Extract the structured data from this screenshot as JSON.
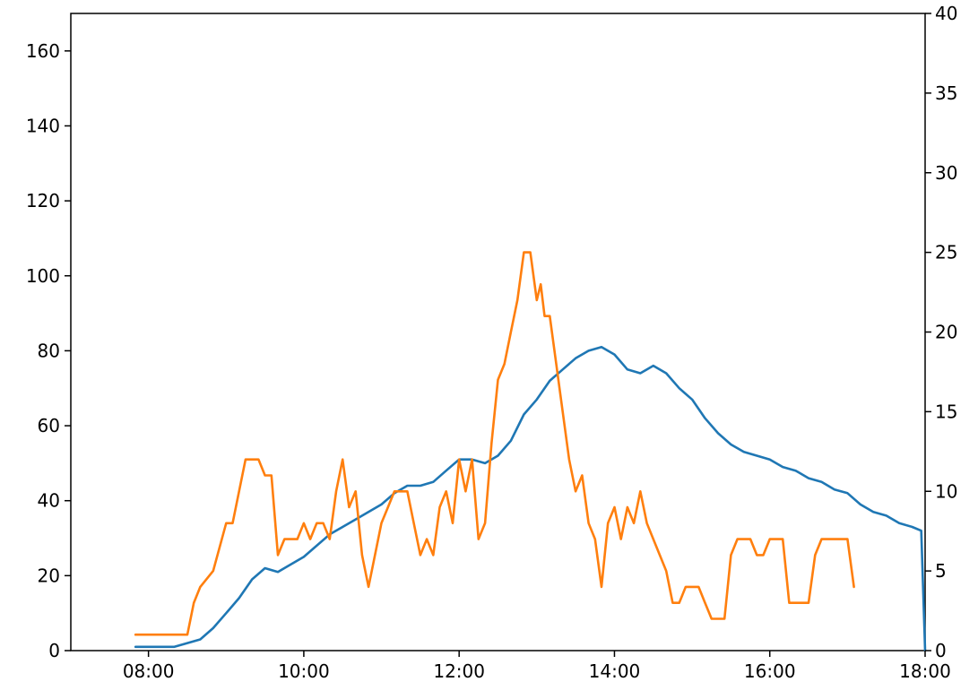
{
  "chart_data": {
    "type": "line",
    "title": "",
    "xlabel": "",
    "ylabel": "",
    "ylabel_right": "",
    "grid": false,
    "xlim": [
      "07:00",
      "18:00"
    ],
    "ylim_left": [
      0,
      170
    ],
    "ylim_right": [
      0,
      40
    ],
    "x_ticks": [
      "08:00",
      "10:00",
      "12:00",
      "14:00",
      "16:00",
      "18:00"
    ],
    "y_left_ticks": [
      0,
      20,
      40,
      60,
      80,
      100,
      120,
      140,
      160
    ],
    "y_right_ticks": [
      0,
      5,
      10,
      15,
      20,
      25,
      30,
      35,
      40
    ],
    "colors": {
      "series_1": "#1f77b4",
      "series_2": "#ff7f0e"
    },
    "series": [
      {
        "axis": "left",
        "x": [
          "07:50",
          "08:05",
          "08:20",
          "08:30",
          "08:40",
          "08:50",
          "09:00",
          "09:10",
          "09:20",
          "09:30",
          "09:40",
          "09:50",
          "10:00",
          "10:10",
          "10:20",
          "10:30",
          "10:40",
          "10:50",
          "11:00",
          "11:10",
          "11:20",
          "11:30",
          "11:40",
          "11:50",
          "12:00",
          "12:10",
          "12:20",
          "12:30",
          "12:40",
          "12:50",
          "13:00",
          "13:10",
          "13:20",
          "13:30",
          "13:40",
          "13:50",
          "14:00",
          "14:10",
          "14:20",
          "14:30",
          "14:40",
          "14:50",
          "15:00",
          "15:10",
          "15:20",
          "15:30",
          "15:40",
          "15:50",
          "16:00",
          "16:10",
          "16:20",
          "16:30",
          "16:40",
          "16:50",
          "17:00",
          "17:10",
          "17:20",
          "17:30",
          "17:40",
          "17:50",
          "17:57",
          "18:00"
        ],
        "values": [
          1,
          1,
          1,
          2,
          3,
          6,
          10,
          14,
          19,
          22,
          21,
          23,
          25,
          28,
          31,
          33,
          35,
          37,
          39,
          42,
          44,
          44,
          45,
          48,
          51,
          51,
          50,
          52,
          56,
          63,
          67,
          72,
          75,
          78,
          80,
          81,
          79,
          75,
          74,
          76,
          74,
          70,
          67,
          62,
          58,
          55,
          53,
          52,
          51,
          49,
          48,
          46,
          45,
          43,
          42,
          39,
          37,
          36,
          34,
          33,
          32,
          0
        ]
      },
      {
        "axis": "right",
        "x": [
          "07:50",
          "08:00",
          "08:10",
          "08:20",
          "08:30",
          "08:35",
          "08:40",
          "08:50",
          "09:00",
          "09:05",
          "09:10",
          "09:15",
          "09:20",
          "09:25",
          "09:30",
          "09:35",
          "09:40",
          "09:45",
          "09:50",
          "09:55",
          "10:00",
          "10:05",
          "10:10",
          "10:15",
          "10:20",
          "10:25",
          "10:30",
          "10:35",
          "10:40",
          "10:45",
          "10:50",
          "10:55",
          "11:00",
          "11:05",
          "11:10",
          "11:15",
          "11:20",
          "11:25",
          "11:30",
          "11:35",
          "11:40",
          "11:45",
          "11:50",
          "11:55",
          "12:00",
          "12:05",
          "12:10",
          "12:15",
          "12:20",
          "12:25",
          "12:30",
          "12:35",
          "12:40",
          "12:45",
          "12:50",
          "12:55",
          "13:00",
          "13:03",
          "13:06",
          "13:10",
          "13:15",
          "13:20",
          "13:25",
          "13:30",
          "13:35",
          "13:40",
          "13:45",
          "13:50",
          "13:55",
          "14:00",
          "14:05",
          "14:10",
          "14:15",
          "14:20",
          "14:25",
          "14:30",
          "14:35",
          "14:40",
          "14:45",
          "14:50",
          "14:55",
          "15:00",
          "15:05",
          "15:10",
          "15:15",
          "15:20",
          "15:25",
          "15:30",
          "15:35",
          "15:40",
          "15:45",
          "15:50",
          "15:55",
          "16:00",
          "16:05",
          "16:10",
          "16:15",
          "16:20",
          "16:25",
          "16:30",
          "16:35",
          "16:40",
          "16:45",
          "16:50",
          "16:55",
          "17:00",
          "17:05"
        ],
        "values": [
          1,
          1,
          1,
          1,
          1,
          3,
          4,
          5,
          8,
          8,
          10,
          12,
          12,
          12,
          11,
          11,
          6,
          7,
          7,
          7,
          8,
          7,
          8,
          8,
          7,
          10,
          12,
          9,
          10,
          6,
          4,
          6,
          8,
          9,
          10,
          10,
          10,
          8,
          6,
          7,
          6,
          9,
          10,
          8,
          12,
          10,
          12,
          7,
          8,
          13,
          17,
          18,
          20,
          22,
          25,
          25,
          22,
          23,
          21,
          21,
          18,
          15,
          12,
          10,
          11,
          8,
          7,
          4,
          8,
          9,
          7,
          9,
          8,
          10,
          8,
          7,
          6,
          5,
          3,
          3,
          4,
          4,
          4,
          3,
          2,
          2,
          2,
          6,
          7,
          7,
          7,
          6,
          6,
          7,
          7,
          7,
          3,
          3,
          3,
          3,
          6,
          7,
          7,
          7,
          7,
          7,
          4
        ]
      }
    ]
  }
}
